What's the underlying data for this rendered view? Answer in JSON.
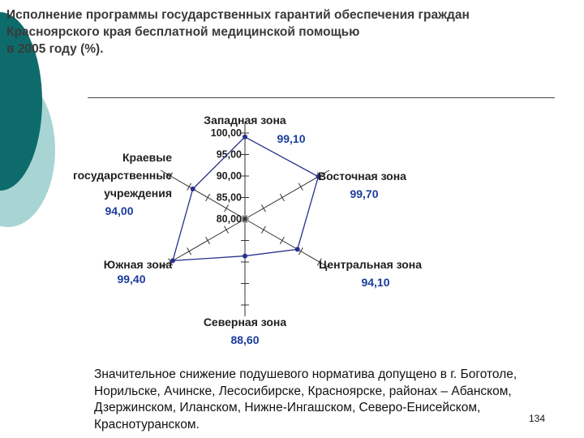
{
  "slide": {
    "title": "Исполнение программы государственных гарантий обеспечения граждан\nКрасноярского края бесплатной медицинской помощью\n в 2005 году (%).",
    "body": "Значительное снижение подушевого норматива допущено в г. Боготоле, Норильске, Ачинске, Лесосибирске, Красноярске, районах – Абанском, Дзержинском, Иланском, Нижне-Ингашском, Северо-Енисейском, Краснотуранском.",
    "page_number": "134",
    "colors": {
      "teal_dark": "#0e6b6b",
      "teal_light": "#a9d4d4",
      "series": "#27318c",
      "value_text": "#1c3c9c"
    }
  },
  "chart_data": {
    "type": "radar",
    "categories": [
      "Западная зона",
      "Восточная зона",
      "Центральная зона",
      "Северная зона",
      "Южная зона",
      "Краевые\nгосударственные\nучреждения"
    ],
    "values": [
      99.1,
      99.7,
      94.1,
      88.6,
      99.4,
      94.0
    ],
    "value_labels": [
      "99,10",
      "99,70",
      "94,10",
      "88,60",
      "99,40",
      "94,00"
    ],
    "tick_labels": [
      "80,00",
      "85,00",
      "90,00",
      "95,00",
      "100,00"
    ],
    "rlim": [
      80,
      100
    ]
  }
}
